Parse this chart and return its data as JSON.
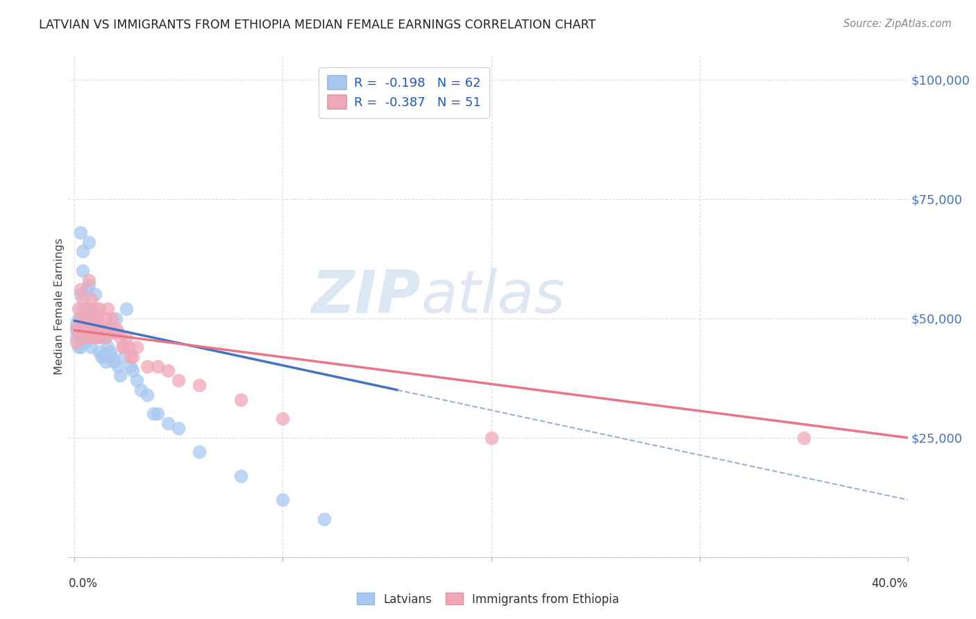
{
  "title": "LATVIAN VS IMMIGRANTS FROM ETHIOPIA MEDIAN FEMALE EARNINGS CORRELATION CHART",
  "source": "Source: ZipAtlas.com",
  "ylabel": "Median Female Earnings",
  "yticks": [
    0,
    25000,
    50000,
    75000,
    100000
  ],
  "xlim": [
    0.0,
    0.4
  ],
  "ylim": [
    0,
    105000
  ],
  "latvian_color": "#a8c8f0",
  "ethiopia_color": "#f0a8b8",
  "latvian_line_color": "#4472c4",
  "ethiopia_line_color": "#e8748a",
  "dashed_line_color": "#9ab0d0",
  "watermark_zip": "ZIP",
  "watermark_atlas": "atlas",
  "lat_line_x0": 0.0,
  "lat_line_y0": 49500,
  "lat_line_x1": 0.155,
  "lat_line_y1": 35000,
  "lat_line_dash_x0": 0.155,
  "lat_line_dash_y0": 35000,
  "lat_line_dash_x1": 0.4,
  "lat_line_dash_y1": 12000,
  "eth_line_x0": 0.0,
  "eth_line_y0": 47500,
  "eth_line_x1": 0.4,
  "eth_line_y1": 25000,
  "latvian_x": [
    0.001,
    0.001,
    0.001,
    0.002,
    0.002,
    0.002,
    0.003,
    0.003,
    0.003,
    0.003,
    0.004,
    0.004,
    0.004,
    0.004,
    0.005,
    0.005,
    0.005,
    0.006,
    0.006,
    0.006,
    0.007,
    0.007,
    0.007,
    0.008,
    0.008,
    0.008,
    0.009,
    0.009,
    0.01,
    0.01,
    0.011,
    0.011,
    0.012,
    0.012,
    0.013,
    0.013,
    0.014,
    0.014,
    0.015,
    0.015,
    0.016,
    0.017,
    0.018,
    0.019,
    0.02,
    0.021,
    0.022,
    0.024,
    0.025,
    0.027,
    0.028,
    0.03,
    0.032,
    0.035,
    0.038,
    0.04,
    0.045,
    0.05,
    0.06,
    0.08,
    0.1,
    0.12
  ],
  "latvian_y": [
    49000,
    47500,
    46000,
    50000,
    48000,
    44000,
    68000,
    55000,
    47000,
    44000,
    64000,
    60000,
    52000,
    46000,
    50000,
    48000,
    45000,
    56000,
    50000,
    46000,
    66000,
    57000,
    48000,
    52000,
    47000,
    44000,
    50000,
    46000,
    55000,
    46000,
    50000,
    47000,
    48000,
    43000,
    46000,
    42000,
    48000,
    42000,
    46000,
    41000,
    44000,
    43000,
    42000,
    41000,
    50000,
    40000,
    38000,
    42000,
    52000,
    40000,
    39000,
    37000,
    35000,
    34000,
    30000,
    30000,
    28000,
    27000,
    22000,
    17000,
    12000,
    8000
  ],
  "ethiopia_x": [
    0.001,
    0.001,
    0.002,
    0.002,
    0.003,
    0.003,
    0.004,
    0.004,
    0.005,
    0.005,
    0.006,
    0.006,
    0.007,
    0.007,
    0.008,
    0.008,
    0.009,
    0.009,
    0.01,
    0.01,
    0.011,
    0.011,
    0.012,
    0.012,
    0.013,
    0.014,
    0.015,
    0.015,
    0.016,
    0.017,
    0.018,
    0.019,
    0.02,
    0.021,
    0.022,
    0.023,
    0.024,
    0.025,
    0.026,
    0.027,
    0.028,
    0.03,
    0.035,
    0.04,
    0.045,
    0.05,
    0.06,
    0.08,
    0.1,
    0.2,
    0.35
  ],
  "ethiopia_y": [
    48000,
    45000,
    52000,
    47000,
    56000,
    50000,
    54000,
    48000,
    50000,
    46000,
    52000,
    47000,
    58000,
    48000,
    54000,
    46000,
    50000,
    47000,
    52000,
    46000,
    50000,
    46000,
    52000,
    48000,
    48000,
    47000,
    50000,
    46000,
    52000,
    48000,
    50000,
    47000,
    48000,
    47000,
    46000,
    44000,
    44000,
    46000,
    44000,
    42000,
    42000,
    44000,
    40000,
    40000,
    39000,
    37000,
    36000,
    33000,
    29000,
    25000,
    25000
  ]
}
